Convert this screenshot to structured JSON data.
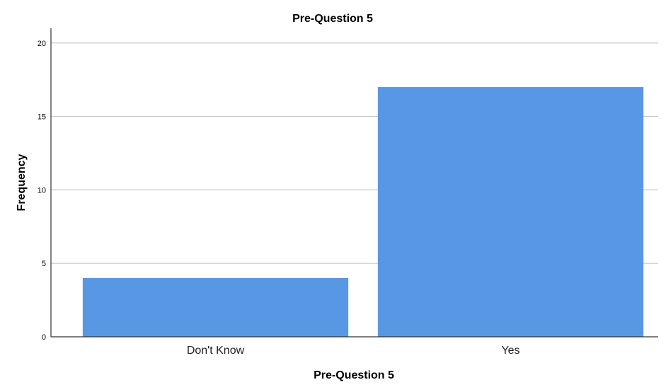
{
  "chart_data": {
    "type": "bar",
    "title": "Pre-Question 5",
    "xlabel": "Pre-Question 5",
    "ylabel": "Frequency",
    "categories": [
      "Don't Know",
      "Yes"
    ],
    "values": [
      4,
      17
    ],
    "ylim": [
      0,
      21
    ],
    "yticks": [
      "0",
      "5",
      "10",
      "15",
      "20"
    ],
    "grid": true,
    "legend": "none",
    "bar_color": "#5897E4"
  }
}
